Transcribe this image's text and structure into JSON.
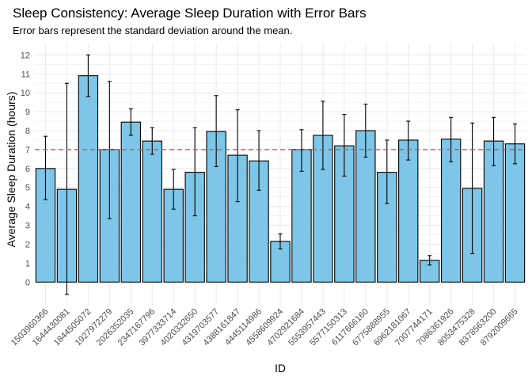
{
  "chart_data": {
    "type": "bar",
    "title": "Sleep Consistency: Average Sleep Duration with Error Bars",
    "subtitle": "Error bars represent the standard deviation around the mean.",
    "xlabel": "ID",
    "ylabel": "Average Sleep Duration (hours)",
    "ylim": [
      -1.2,
      12.6
    ],
    "yticks": [
      0,
      1,
      2,
      3,
      4,
      5,
      6,
      7,
      8,
      9,
      10,
      11,
      12
    ],
    "reference_line": {
      "y": 7,
      "style": "dashed",
      "color": "#e8473f"
    },
    "grid": true,
    "bar_fill": "#7dc6e8",
    "bar_stroke": "#000000",
    "categories": [
      "1503960366",
      "1644430081",
      "1844505072",
      "1927972279",
      "2026352035",
      "2347167796",
      "3977333714",
      "4020332650",
      "4319703577",
      "4388161847",
      "4445114986",
      "4558609924",
      "4702921684",
      "5553957443",
      "5577150313",
      "6117666160",
      "6775888955",
      "6962181067",
      "7007744171",
      "7086361926",
      "8053475328",
      "8378563200",
      "8792009665"
    ],
    "values": [
      6.0,
      4.9,
      10.9,
      7.0,
      8.45,
      7.45,
      4.9,
      5.8,
      7.95,
      6.7,
      6.4,
      2.15,
      7.0,
      7.75,
      7.2,
      8.0,
      5.8,
      7.5,
      1.15,
      7.55,
      4.95,
      7.45,
      7.3
    ],
    "error_bars": {
      "low": [
        4.35,
        -0.65,
        9.8,
        3.35,
        7.75,
        6.75,
        3.85,
        3.5,
        6.1,
        4.25,
        4.85,
        1.75,
        5.85,
        5.95,
        5.6,
        6.6,
        4.15,
        6.45,
        0.9,
        6.35,
        1.5,
        6.15,
        6.25
      ],
      "high": [
        7.7,
        10.5,
        12.0,
        10.6,
        9.15,
        8.15,
        5.95,
        8.15,
        9.85,
        9.1,
        8.0,
        2.55,
        8.05,
        9.55,
        8.85,
        9.4,
        7.5,
        8.5,
        1.4,
        8.7,
        8.4,
        8.7,
        8.35
      ]
    }
  }
}
